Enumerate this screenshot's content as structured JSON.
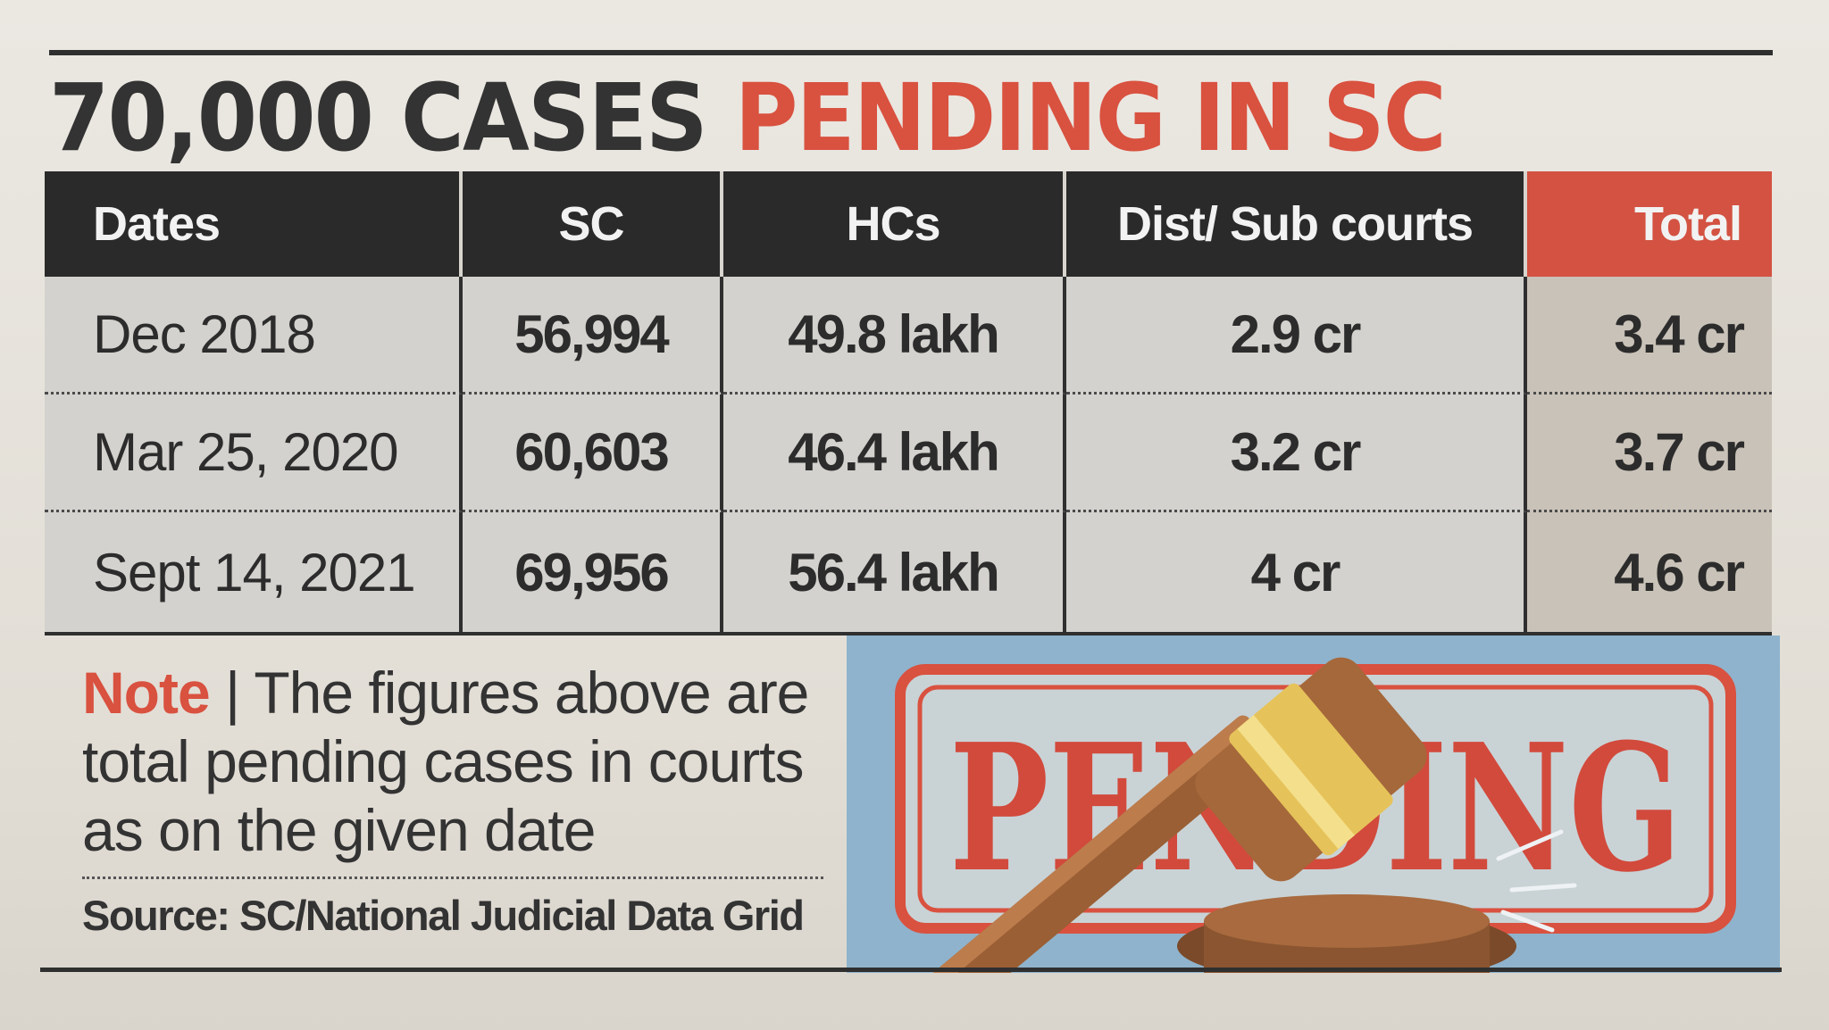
{
  "headline": {
    "dark": "70,000 CASES",
    "red": "PENDING IN SC"
  },
  "table": {
    "columns": [
      "Dates",
      "SC",
      "HCs",
      "Dist/ Sub courts",
      "Total"
    ],
    "rows": [
      [
        "Dec 2018",
        "56,994",
        "49.8 lakh",
        "2.9 cr",
        "3.4 cr"
      ],
      [
        "Mar 25, 2020",
        "60,603",
        "46.4 lakh",
        "3.2 cr",
        "3.7 cr"
      ],
      [
        "Sept 14, 2021",
        "69,956",
        "56.4 lakh",
        "4 cr",
        "4.6 cr"
      ]
    ]
  },
  "note": {
    "label": "Note",
    "separator": "|",
    "text": "The figures above are total pending cases in courts as on the given date"
  },
  "source": "Source: SC/National Judicial Data Grid",
  "illustration": {
    "stamp_text": "PENDING",
    "icon": "gavel-icon"
  },
  "colors": {
    "accent_red": "#d9513f",
    "header_dark": "#2a2a2a",
    "illustration_bg": "#8fb3cc"
  }
}
